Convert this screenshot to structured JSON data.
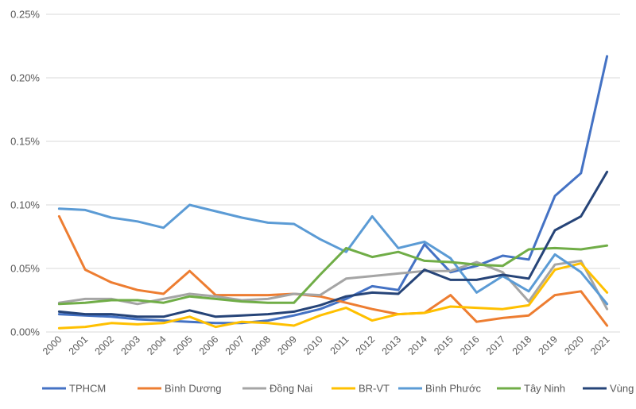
{
  "chart_data": {
    "type": "line",
    "title": "",
    "xlabel": "",
    "ylabel": "",
    "ylim": [
      0,
      0.25
    ],
    "y_tick_labels": [
      "0.00%",
      "0.05%",
      "0.10%",
      "0.15%",
      "0.20%",
      "0.25%"
    ],
    "y_tick_values": [
      0,
      0.05,
      0.1,
      0.15,
      0.2,
      0.25
    ],
    "grid": "horizontal",
    "legend_position": "bottom",
    "categories": [
      "2000",
      "2001",
      "2002",
      "2003",
      "2004",
      "2005",
      "2006",
      "2007",
      "2008",
      "2009",
      "2010",
      "2011",
      "2012",
      "2013",
      "2014",
      "2015",
      "2016",
      "2017",
      "2018",
      "2019",
      "2020",
      "2021"
    ],
    "series": [
      {
        "name": "TPHCM",
        "color": "#4472c4",
        "values": [
          0.014,
          0.013,
          0.012,
          0.01,
          0.009,
          0.008,
          0.007,
          0.007,
          0.009,
          0.013,
          0.018,
          0.026,
          0.036,
          0.033,
          0.069,
          0.047,
          0.052,
          0.06,
          0.057,
          0.107,
          0.125,
          0.217
        ]
      },
      {
        "name": "Bình Dương",
        "color": "#ed7d31",
        "values": [
          0.091,
          0.049,
          0.039,
          0.033,
          0.03,
          0.048,
          0.029,
          0.029,
          0.029,
          0.03,
          0.028,
          0.023,
          0.018,
          0.014,
          0.015,
          0.029,
          0.008,
          0.011,
          0.013,
          0.029,
          0.032,
          0.005
        ]
      },
      {
        "name": "Đồng Nai",
        "color": "#a5a5a5",
        "values": [
          0.023,
          0.026,
          0.026,
          0.022,
          0.026,
          0.03,
          0.028,
          0.025,
          0.026,
          0.03,
          0.029,
          0.042,
          0.044,
          0.046,
          0.048,
          0.048,
          0.055,
          0.047,
          0.024,
          0.053,
          0.056,
          0.018
        ]
      },
      {
        "name": "BR-VT",
        "color": "#ffc000",
        "values": [
          0.003,
          0.004,
          0.007,
          0.006,
          0.007,
          0.012,
          0.004,
          0.008,
          0.007,
          0.005,
          0.013,
          0.019,
          0.009,
          0.014,
          0.015,
          0.02,
          0.019,
          0.018,
          0.021,
          0.049,
          0.054,
          0.031
        ]
      },
      {
        "name": "Bình Phước",
        "color": "#5b9bd5",
        "values": [
          0.097,
          0.096,
          0.09,
          0.087,
          0.082,
          0.1,
          0.095,
          0.09,
          0.086,
          0.085,
          0.073,
          0.063,
          0.091,
          0.066,
          0.071,
          0.058,
          0.031,
          0.044,
          0.032,
          0.061,
          0.047,
          0.022
        ]
      },
      {
        "name": "Tây Ninh",
        "color": "#70ad47",
        "values": [
          0.022,
          0.023,
          0.025,
          0.025,
          0.023,
          0.028,
          0.026,
          0.024,
          0.023,
          0.023,
          0.045,
          0.066,
          0.059,
          0.063,
          0.056,
          0.055,
          0.053,
          0.052,
          0.065,
          0.066,
          0.065,
          0.068
        ]
      },
      {
        "name": "Vùng",
        "color": "#264478",
        "values": [
          0.016,
          0.014,
          0.014,
          0.012,
          0.012,
          0.017,
          0.012,
          0.013,
          0.014,
          0.016,
          0.021,
          0.028,
          0.031,
          0.03,
          0.049,
          0.041,
          0.041,
          0.045,
          0.042,
          0.08,
          0.091,
          0.126
        ]
      }
    ]
  }
}
